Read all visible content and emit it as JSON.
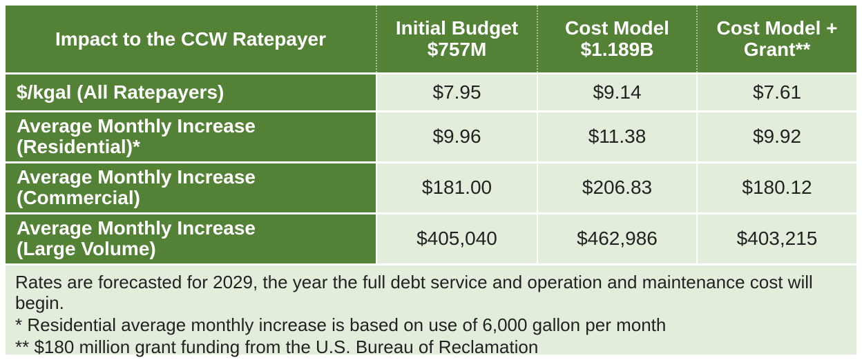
{
  "table": {
    "headers": [
      {
        "line1": "Impact to the CCW Ratepayer",
        "line2": ""
      },
      {
        "line1": "Initial Budget",
        "line2": "$757M"
      },
      {
        "line1": "Cost Model",
        "line2": "$1.189B"
      },
      {
        "line1": "Cost Model +",
        "line2": "Grant**"
      }
    ],
    "rows": [
      {
        "label_line1": "$/kgal (All Ratepayers)",
        "label_line2": "",
        "values": [
          "$7.95",
          "$9.14",
          "$7.61"
        ]
      },
      {
        "label_line1": "Average Monthly Increase",
        "label_line2": "(Residential)*",
        "values": [
          "$9.96",
          "$11.38",
          "$9.92"
        ]
      },
      {
        "label_line1": "Average Monthly Increase",
        "label_line2": "(Commercial)",
        "values": [
          "$181.00",
          "$206.83",
          "$180.12"
        ]
      },
      {
        "label_line1": "Average Monthly Increase",
        "label_line2": "(Large Volume)",
        "values": [
          "$405,040",
          "$462,986",
          "$403,215"
        ]
      }
    ]
  },
  "notes": [
    "Rates are forecasted for 2029, the year the full debt service and operation and maintenance cost will begin.",
    "* Residential average monthly increase is based on use of 6,000 gallon per month",
    "** $180 million grant funding from the U.S. Bureau of Reclamation"
  ],
  "colors": {
    "header_green": "#538135",
    "cell_light_green": "#e2eedb",
    "header_text": "#ffffff"
  }
}
